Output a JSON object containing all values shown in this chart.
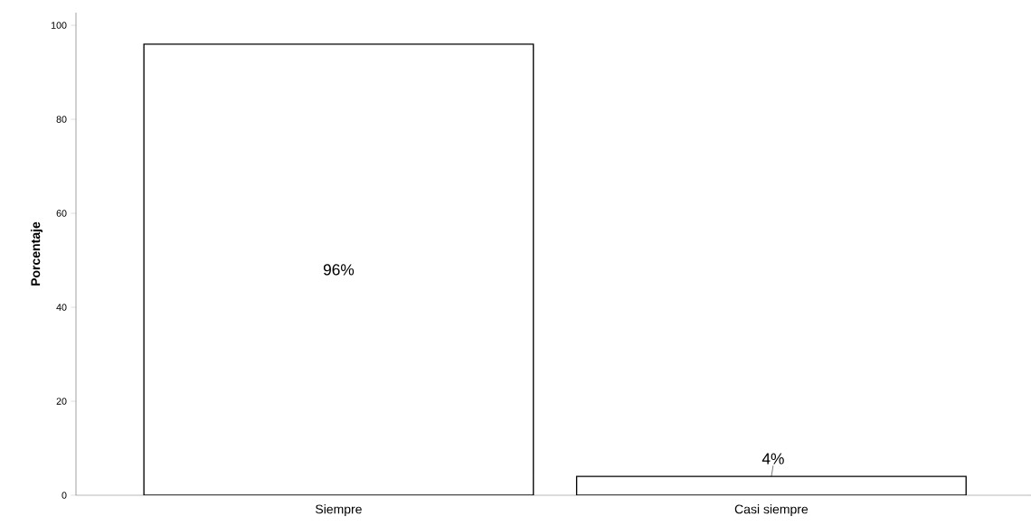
{
  "chart_data": {
    "type": "bar",
    "ylabel": "Porcentaje",
    "categories": [
      "Siempre",
      "Casi siempre"
    ],
    "values": [
      96,
      4
    ],
    "value_labels": [
      "96%",
      "4%"
    ],
    "color": "#ffffff",
    "ylim": [
      0,
      102.7
    ],
    "yticks": [
      0,
      20,
      40,
      60,
      80,
      100
    ],
    "grid": false
  }
}
